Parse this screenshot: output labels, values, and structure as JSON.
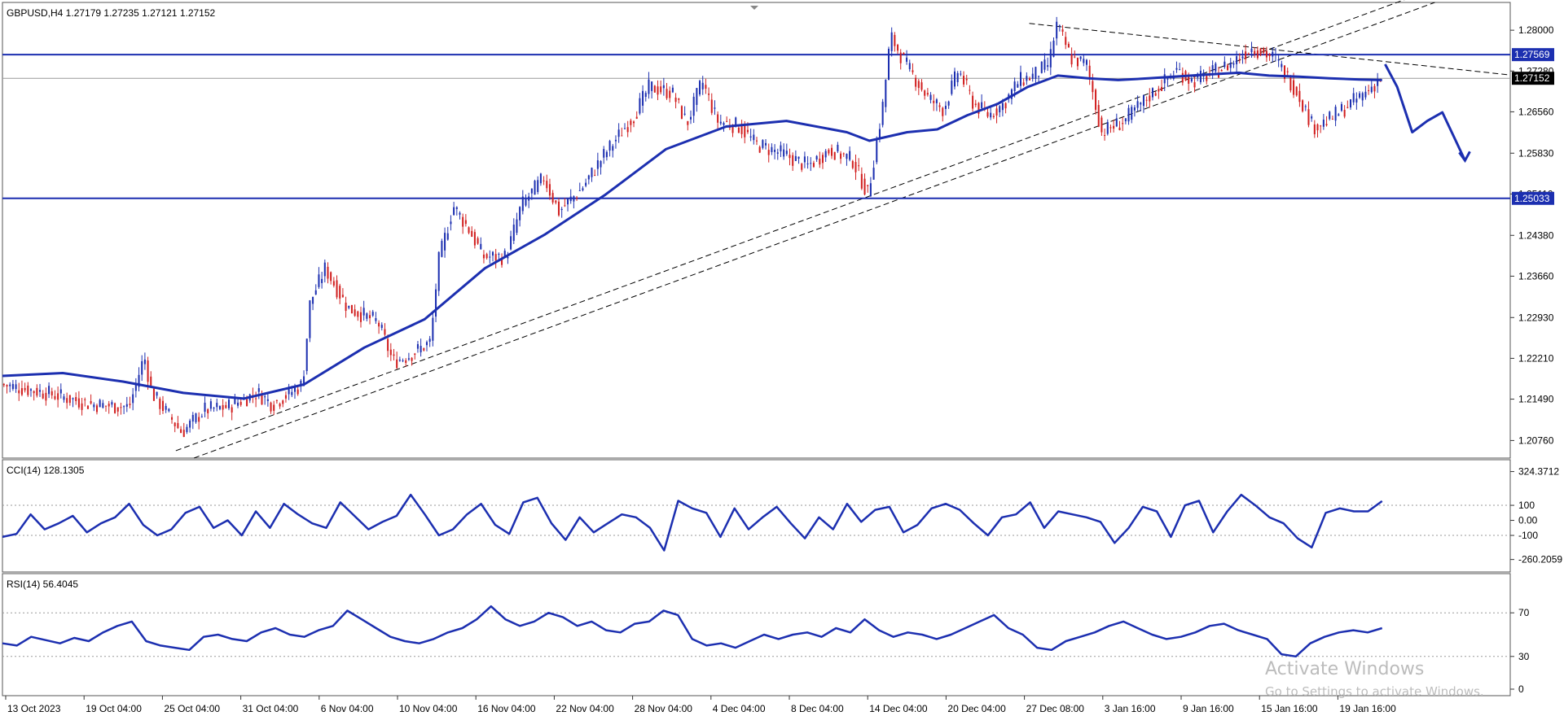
{
  "chart_data": [
    {
      "type": "candlestick",
      "title": "GBPUSD,H4  1.27179 1.27235 1.27121 1.27152",
      "ylim": [
        1.2045,
        1.2849
      ],
      "y_ticks": [
        "1.28000",
        "1.27280",
        "1.26560",
        "1.25830",
        "1.25110",
        "1.24380",
        "1.23660",
        "1.22930",
        "1.22210",
        "1.21490",
        "1.20760"
      ],
      "x_ticks": [
        "13 Oct 2023",
        "19 Oct 04:00",
        "25 Oct 04:00",
        "31 Oct 04:00",
        "6 Nov 04:00",
        "10 Nov 04:00",
        "16 Nov 04:00",
        "22 Nov 04:00",
        "28 Nov 04:00",
        "4 Dec 04:00",
        "8 Dec 04:00",
        "14 Dec 04:00",
        "20 Dec 04:00",
        "27 Dec 08:00",
        "3 Jan 16:00",
        "9 Jan 16:00",
        "15 Jan 16:00",
        "19 Jan 16:00"
      ],
      "price_path": [
        [
          0,
          1.2175
        ],
        [
          0.03,
          1.216
        ],
        [
          0.06,
          1.214
        ],
        [
          0.085,
          1.2135
        ],
        [
          0.095,
          1.2225
        ],
        [
          0.1,
          1.216
        ],
        [
          0.12,
          1.209
        ],
        [
          0.135,
          1.213
        ],
        [
          0.15,
          1.2135
        ],
        [
          0.17,
          1.216
        ],
        [
          0.18,
          1.214
        ],
        [
          0.2,
          1.2175
        ],
        [
          0.205,
          1.232
        ],
        [
          0.215,
          1.238
        ],
        [
          0.23,
          1.231
        ],
        [
          0.25,
          1.2285
        ],
        [
          0.26,
          1.2215
        ],
        [
          0.27,
          1.2225
        ],
        [
          0.285,
          1.225
        ],
        [
          0.29,
          1.239
        ],
        [
          0.3,
          1.249
        ],
        [
          0.31,
          1.245
        ],
        [
          0.32,
          1.24
        ],
        [
          0.335,
          1.24
        ],
        [
          0.345,
          1.249
        ],
        [
          0.36,
          1.254
        ],
        [
          0.37,
          1.248
        ],
        [
          0.385,
          1.252
        ],
        [
          0.4,
          1.258
        ],
        [
          0.42,
          1.265
        ],
        [
          0.43,
          1.27
        ],
        [
          0.445,
          1.269
        ],
        [
          0.455,
          1.2635
        ],
        [
          0.465,
          1.271
        ],
        [
          0.475,
          1.264
        ],
        [
          0.49,
          1.263
        ],
        [
          0.5,
          1.26
        ],
        [
          0.52,
          1.258
        ],
        [
          0.535,
          1.256
        ],
        [
          0.55,
          1.259
        ],
        [
          0.565,
          1.257
        ],
        [
          0.575,
          1.251
        ],
        [
          0.585,
          1.267
        ],
        [
          0.59,
          1.279
        ],
        [
          0.6,
          1.274
        ],
        [
          0.615,
          1.268
        ],
        [
          0.625,
          1.266
        ],
        [
          0.635,
          1.273
        ],
        [
          0.645,
          1.267
        ],
        [
          0.655,
          1.265
        ],
        [
          0.665,
          1.267
        ],
        [
          0.675,
          1.271
        ],
        [
          0.685,
          1.272
        ],
        [
          0.695,
          1.274
        ],
        [
          0.7,
          1.281
        ],
        [
          0.71,
          1.275
        ],
        [
          0.72,
          1.274
        ],
        [
          0.73,
          1.262
        ],
        [
          0.745,
          1.264
        ],
        [
          0.76,
          1.268
        ],
        [
          0.78,
          1.273
        ],
        [
          0.79,
          1.271
        ],
        [
          0.8,
          1.272
        ],
        [
          0.815,
          1.274
        ],
        [
          0.83,
          1.277
        ],
        [
          0.845,
          1.275
        ],
        [
          0.86,
          1.269
        ],
        [
          0.87,
          1.263
        ],
        [
          0.88,
          1.264
        ],
        [
          0.895,
          1.267
        ],
        [
          0.905,
          1.269
        ],
        [
          0.915,
          1.2715
        ]
      ],
      "moving_average": [
        [
          0,
          1.219
        ],
        [
          0.04,
          1.2195
        ],
        [
          0.08,
          1.218
        ],
        [
          0.12,
          1.216
        ],
        [
          0.16,
          1.215
        ],
        [
          0.2,
          1.2175
        ],
        [
          0.24,
          1.224
        ],
        [
          0.28,
          1.229
        ],
        [
          0.32,
          1.238
        ],
        [
          0.36,
          1.244
        ],
        [
          0.4,
          1.251
        ],
        [
          0.44,
          1.259
        ],
        [
          0.48,
          1.263
        ],
        [
          0.52,
          1.264
        ],
        [
          0.56,
          1.262
        ],
        [
          0.575,
          1.2605
        ],
        [
          0.6,
          1.262
        ],
        [
          0.62,
          1.2625
        ],
        [
          0.64,
          1.265
        ],
        [
          0.66,
          1.267
        ],
        [
          0.68,
          1.27
        ],
        [
          0.7,
          1.272
        ],
        [
          0.72,
          1.2715
        ],
        [
          0.74,
          1.2712
        ],
        [
          0.76,
          1.2715
        ],
        [
          0.8,
          1.2722
        ],
        [
          0.82,
          1.2725
        ],
        [
          0.84,
          1.272
        ],
        [
          0.86,
          1.2718
        ],
        [
          0.88,
          1.2715
        ],
        [
          0.9,
          1.2713
        ],
        [
          0.915,
          1.2712
        ]
      ],
      "horizontal_levels": [
        {
          "label": "1.27569",
          "value": 1.27569,
          "color": "#1c2fb0"
        },
        {
          "label": "1.25033",
          "value": 1.25033,
          "color": "#1c2fb0"
        }
      ],
      "current_price": {
        "label": "1.27152",
        "value": 1.27152
      },
      "trendlines": [
        {
          "style": "dashed",
          "from": [
            0.115,
            1.2058
          ],
          "to": [
            0.93,
            1.2854
          ]
        },
        {
          "style": "dashed",
          "from": [
            0.127,
            1.2045
          ],
          "to": [
            0.95,
            1.2849
          ]
        },
        {
          "style": "dashed",
          "from": [
            0.681,
            1.2812
          ],
          "to": [
            1.0,
            1.2721
          ]
        }
      ],
      "forecast_path": [
        [
          0.917,
          1.274
        ],
        [
          0.925,
          1.27
        ],
        [
          0.935,
          1.262
        ],
        [
          0.945,
          1.264
        ],
        [
          0.955,
          1.2655
        ],
        [
          0.963,
          1.261
        ],
        [
          0.97,
          1.257
        ]
      ],
      "colors": {
        "bull": "#1c2fb0",
        "bear": "#d11f1f",
        "ma": "#1c2fb0",
        "level": "#1c2fb0",
        "trend": "#000000"
      }
    },
    {
      "type": "line",
      "title": "CCI(14) 128.1305",
      "ylim": [
        -300,
        360
      ],
      "y_ticks": [
        "324.3712",
        "100",
        "0.00",
        "-100",
        "-260.2059"
      ],
      "values": [
        -110,
        -90,
        40,
        -60,
        -20,
        30,
        -80,
        -20,
        20,
        110,
        -30,
        -100,
        -60,
        50,
        90,
        -50,
        0,
        -100,
        60,
        -50,
        110,
        40,
        -20,
        -50,
        120,
        30,
        -60,
        -10,
        30,
        170,
        40,
        -100,
        -60,
        40,
        110,
        -30,
        -90,
        120,
        150,
        -20,
        -130,
        20,
        -80,
        -20,
        40,
        20,
        -50,
        -200,
        130,
        80,
        50,
        -110,
        80,
        -60,
        20,
        90,
        -20,
        -120,
        20,
        -60,
        110,
        -10,
        70,
        90,
        -80,
        -30,
        80,
        110,
        70,
        -20,
        -100,
        20,
        40,
        120,
        -50,
        60,
        40,
        20,
        -10,
        -150,
        -50,
        90,
        60,
        -110,
        100,
        130,
        -80,
        60,
        170,
        100,
        20,
        -20,
        -120,
        -180,
        50,
        80,
        60,
        60,
        128
      ]
    },
    {
      "type": "line",
      "title": "RSI(14) 56.4045",
      "ylim": [
        0,
        100
      ],
      "y_ticks": [
        "70",
        "30",
        "0"
      ],
      "values": [
        42,
        40,
        48,
        45,
        42,
        47,
        44,
        52,
        58,
        62,
        44,
        40,
        38,
        36,
        48,
        50,
        46,
        44,
        52,
        56,
        50,
        48,
        54,
        58,
        72,
        64,
        56,
        48,
        44,
        42,
        46,
        52,
        56,
        64,
        76,
        64,
        58,
        62,
        70,
        66,
        58,
        62,
        54,
        52,
        60,
        62,
        72,
        68,
        46,
        40,
        42,
        38,
        44,
        50,
        46,
        50,
        52,
        48,
        56,
        52,
        64,
        54,
        48,
        52,
        50,
        46,
        50,
        56,
        62,
        68,
        56,
        50,
        38,
        36,
        44,
        48,
        52,
        58,
        62,
        56,
        50,
        46,
        48,
        52,
        58,
        60,
        54,
        50,
        46,
        32,
        30,
        42,
        48,
        52,
        54,
        52,
        56
      ]
    }
  ],
  "watermark": {
    "line1": "Activate Windows",
    "line2": "Go to Settings to activate Windows."
  }
}
